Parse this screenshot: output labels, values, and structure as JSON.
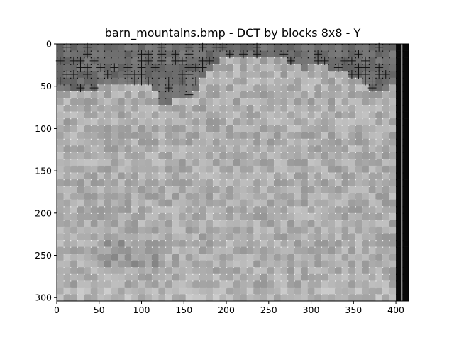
{
  "chart_data": {
    "type": "heatmap",
    "title": "barn_mountains.bmp - DCT by blocks 8x8 - Y",
    "xlabel": "",
    "ylabel": "",
    "xlim": [
      0,
      415
    ],
    "ylim": [
      304,
      0
    ],
    "image_size": [
      415,
      304
    ],
    "block_size": 8,
    "colormap": "gray",
    "grid": false,
    "x_ticks": [
      0,
      50,
      100,
      150,
      200,
      250,
      300,
      350,
      400
    ],
    "y_ticks": [
      0,
      50,
      100,
      150,
      200,
      250,
      300
    ],
    "x_tick_labels": [
      "0",
      "50",
      "100",
      "150",
      "200",
      "250",
      "300",
      "350",
      "400"
    ],
    "y_tick_labels": [
      "0",
      "50",
      "100",
      "150",
      "200",
      "250",
      "300"
    ]
  }
}
